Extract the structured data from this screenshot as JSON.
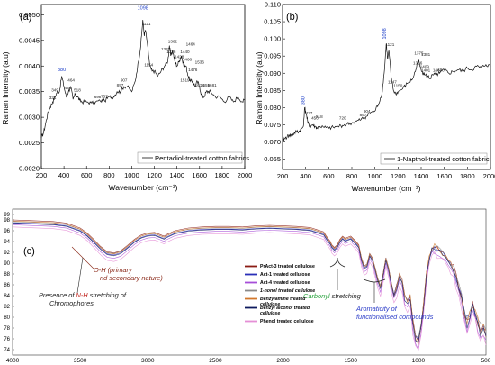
{
  "chart_data": [
    {
      "type": "line",
      "panel": "(a)",
      "legend": "Pentadiol-treated cotton fabrics",
      "legend_placement": "bottom-right",
      "xlabel": "Wavenumber (cm⁻¹)",
      "ylabel": "Raman Intensity (a.u)",
      "xlim": [
        200,
        2000
      ],
      "ylim": [
        0.002,
        0.0052
      ],
      "xticks": [
        "200",
        "400",
        "600",
        "800",
        "1000",
        "1200",
        "1400",
        "1600",
        "1800",
        "2000"
      ],
      "yticks": [
        "0.0020",
        "0.0025",
        "0.0030",
        "0.0035",
        "0.0040",
        "0.0045",
        "0.0050"
      ],
      "color": "#111111",
      "x": [
        200,
        220,
        240,
        260,
        280,
        300,
        320,
        340,
        360,
        380,
        400,
        420,
        440,
        460,
        480,
        500,
        520,
        540,
        560,
        600,
        640,
        680,
        720,
        760,
        800,
        840,
        870,
        900,
        930,
        960,
        1000,
        1030,
        1060,
        1080,
        1098,
        1110,
        1121,
        1140,
        1160,
        1180,
        1200,
        1230,
        1260,
        1290,
        1320,
        1333,
        1345,
        1362,
        1380,
        1400,
        1420,
        1439,
        1460,
        1480,
        1500,
        1520,
        1540,
        1560,
        1580,
        1600,
        1620,
        1640,
        1660,
        1680,
        1700,
        1740,
        1780,
        1820,
        1860,
        1900,
        1940,
        1980,
        2000
      ],
      "y": [
        0.0026,
        0.0027,
        0.0029,
        0.0031,
        0.0032,
        0.0033,
        0.0034,
        0.0035,
        0.0035,
        0.0038,
        0.0036,
        0.0034,
        0.0035,
        0.0036,
        0.00335,
        0.00345,
        0.0034,
        0.00333,
        0.0033,
        0.0033,
        0.00328,
        0.0033,
        0.00332,
        0.00332,
        0.0034,
        0.0034,
        0.0035,
        0.0035,
        0.0036,
        0.0036,
        0.0035,
        0.0037,
        0.0041,
        0.0044,
        0.0049,
        0.0046,
        0.0047,
        0.0044,
        0.004,
        0.0039,
        0.0039,
        0.0038,
        0.0039,
        0.004,
        0.0041,
        0.0044,
        0.0042,
        0.0043,
        0.0041,
        0.004,
        0.0041,
        0.0042,
        0.004,
        0.004,
        0.0038,
        0.0037,
        0.0037,
        0.0036,
        0.0037,
        0.0036,
        0.0034,
        0.0034,
        0.0035,
        0.0035,
        0.0035,
        0.0034,
        0.0034,
        0.0033,
        0.0034,
        0.0033,
        0.0034,
        0.0033,
        0.00335
      ],
      "annotations": [
        {
          "label": "334",
          "x": 300,
          "y": 0.00335
        },
        {
          "label": "349",
          "x": 320,
          "y": 0.0035
        },
        {
          "label": "380",
          "x": 380,
          "y": 0.0039,
          "highlight": true
        },
        {
          "label": "434",
          "x": 434,
          "y": 0.00355
        },
        {
          "label": "464",
          "x": 464,
          "y": 0.0037
        },
        {
          "label": "518",
          "x": 518,
          "y": 0.0035
        },
        {
          "label": "698",
          "x": 698,
          "y": 0.00337
        },
        {
          "label": "757",
          "x": 757,
          "y": 0.00338
        },
        {
          "label": "897",
          "x": 897,
          "y": 0.0036
        },
        {
          "label": "907",
          "x": 930,
          "y": 0.0037
        },
        {
          "label": "1098",
          "x": 1098,
          "y": 0.0051,
          "highlight": true
        },
        {
          "label": "1121",
          "x": 1128,
          "y": 0.0048
        },
        {
          "label": "1154",
          "x": 1150,
          "y": 0.004
        },
        {
          "label": "1332",
          "x": 1300,
          "y": 0.0043
        },
        {
          "label": "1336",
          "x": 1350,
          "y": 0.00425
        },
        {
          "label": "1362",
          "x": 1362,
          "y": 0.00445
        },
        {
          "label": "1428",
          "x": 1420,
          "y": 0.00415
        },
        {
          "label": "1440",
          "x": 1470,
          "y": 0.00425
        },
        {
          "label": "1464",
          "x": 1520,
          "y": 0.0044
        },
        {
          "label": "1466",
          "x": 1490,
          "y": 0.0041
        },
        {
          "label": "1519",
          "x": 1470,
          "y": 0.0037
        },
        {
          "label": "1476",
          "x": 1540,
          "y": 0.0039
        },
        {
          "label": "1536",
          "x": 1600,
          "y": 0.00405
        },
        {
          "label": "1614",
          "x": 1600,
          "y": 0.0036
        },
        {
          "label": "1659",
          "x": 1650,
          "y": 0.0036
        },
        {
          "label": "1681",
          "x": 1710,
          "y": 0.0036
        }
      ]
    },
    {
      "type": "line",
      "panel": "(b)",
      "legend": "1-Napthol-treated cotton fabric",
      "legend_placement": "bottom-right",
      "xlabel": "Wavenumber (cm⁻¹)",
      "ylabel": "Raman Intensity (a.u)",
      "xlim": [
        200,
        2000
      ],
      "ylim": [
        0.062,
        0.11
      ],
      "xticks": [
        "200",
        "400",
        "600",
        "800",
        "1000",
        "1200",
        "1400",
        "1600",
        "1800",
        "2000"
      ],
      "yticks": [
        "0.065",
        "0.070",
        "0.075",
        "0.080",
        "0.085",
        "0.090",
        "0.095",
        "0.100",
        "0.105",
        "0.110"
      ],
      "color": "#111111",
      "x": [
        200,
        220,
        240,
        260,
        280,
        300,
        320,
        340,
        360,
        380,
        392,
        405,
        420,
        440,
        460,
        480,
        500,
        520,
        560,
        600,
        640,
        680,
        720,
        760,
        800,
        840,
        880,
        900,
        930,
        960,
        1000,
        1030,
        1060,
        1080,
        1098,
        1110,
        1121,
        1140,
        1160,
        1180,
        1200,
        1240,
        1280,
        1320,
        1350,
        1375,
        1390,
        1410,
        1430,
        1460,
        1480,
        1500,
        1530,
        1560,
        1600,
        1640,
        1680,
        1720,
        1760,
        1800,
        1840,
        1880,
        1920,
        1960,
        2000
      ],
      "y": [
        0.0705,
        0.071,
        0.0715,
        0.072,
        0.072,
        0.0725,
        0.073,
        0.073,
        0.0735,
        0.0745,
        0.08,
        0.078,
        0.0755,
        0.0745,
        0.075,
        0.0745,
        0.074,
        0.0745,
        0.0742,
        0.074,
        0.0742,
        0.0745,
        0.0748,
        0.0752,
        0.0755,
        0.076,
        0.0765,
        0.077,
        0.0775,
        0.0785,
        0.079,
        0.081,
        0.084,
        0.09,
        0.0985,
        0.094,
        0.0965,
        0.089,
        0.085,
        0.084,
        0.0845,
        0.0855,
        0.087,
        0.088,
        0.0905,
        0.094,
        0.092,
        0.0905,
        0.0895,
        0.089,
        0.0885,
        0.0895,
        0.0895,
        0.09,
        0.091,
        0.09,
        0.0905,
        0.091,
        0.0905,
        0.0915,
        0.091,
        0.092,
        0.0915,
        0.0925,
        0.092
      ],
      "annotations": [
        {
          "label": "380",
          "x": 392,
          "y": 0.082,
          "highlight": true,
          "rotated": true
        },
        {
          "label": "437",
          "x": 430,
          "y": 0.078
        },
        {
          "label": "450",
          "x": 480,
          "y": 0.0765
        },
        {
          "label": "518",
          "x": 518,
          "y": 0.077
        },
        {
          "label": "720",
          "x": 720,
          "y": 0.0765
        },
        {
          "label": "897",
          "x": 897,
          "y": 0.0775
        },
        {
          "label": "904",
          "x": 930,
          "y": 0.0785
        },
        {
          "label": "1098",
          "x": 1098,
          "y": 0.1015,
          "highlight": true,
          "rotated": true
        },
        {
          "label": "1121",
          "x": 1130,
          "y": 0.098
        },
        {
          "label": "1147",
          "x": 1150,
          "y": 0.087
        },
        {
          "label": "1150",
          "x": 1200,
          "y": 0.086
        },
        {
          "label": "1375",
          "x": 1380,
          "y": 0.0955
        },
        {
          "label": "1381",
          "x": 1440,
          "y": 0.095
        },
        {
          "label": "1336",
          "x": 1370,
          "y": 0.0925
        },
        {
          "label": "1409",
          "x": 1430,
          "y": 0.0915
        },
        {
          "label": "1401",
          "x": 1440,
          "y": 0.0905
        },
        {
          "label": "1468",
          "x": 1540,
          "y": 0.0905
        },
        {
          "label": "1470",
          "x": 1560,
          "y": 0.0905
        }
      ]
    },
    {
      "type": "line",
      "panel": "(c)",
      "xlim": [
        4000,
        500
      ],
      "ylim": [
        74,
        99
      ],
      "xticks": [
        "4000",
        "3500",
        "3000",
        "2500",
        "2000",
        "1500",
        "1000",
        "500"
      ],
      "yticks": [
        "74",
        "76",
        "78",
        "80",
        "82",
        "84",
        "86",
        "88",
        "90",
        "92",
        "94",
        "96",
        "98",
        "99"
      ],
      "legend_placement": "center-right",
      "series": [
        {
          "name": "PrAct-3 treated cellulose",
          "italic": false,
          "color": "#8b1c14",
          "offset": 0.0,
          "scale": 1.0
        },
        {
          "name": "Act-1 treated cellulose",
          "italic": false,
          "color": "#2a2fb8",
          "offset": -0.5,
          "scale": 0.98
        },
        {
          "name": "Act-4 treated cellulose",
          "italic": false,
          "color": "#a64fd8",
          "offset": -0.9,
          "scale": 1.02
        },
        {
          "name": "1-nonol treated cellulose",
          "italic": true,
          "color": "#8a8a8a",
          "offset": -0.3,
          "scale": 0.97
        },
        {
          "name": "Benzylamine treated cellulose",
          "italic": true,
          "color": "#d2782c",
          "offset": -0.2,
          "scale": 1.0
        },
        {
          "name": "Benzyl alcohol treated cellulose",
          "italic": true,
          "color": "#0e1a5e",
          "offset": -0.6,
          "scale": 0.99
        },
        {
          "name": "Phenol treated cellulose",
          "italic": false,
          "color": "#e58fd6",
          "offset": -1.3,
          "scale": 1.05
        }
      ],
      "base": {
        "x": [
          4000,
          3900,
          3800,
          3700,
          3600,
          3500,
          3450,
          3400,
          3350,
          3300,
          3250,
          3200,
          3150,
          3100,
          3050,
          3000,
          2950,
          2900,
          2880,
          2860,
          2800,
          2700,
          2600,
          2500,
          2400,
          2300,
          2200,
          2100,
          2000,
          1900,
          1800,
          1750,
          1700,
          1680,
          1650,
          1640,
          1620,
          1600,
          1580,
          1560,
          1540,
          1500,
          1460,
          1440,
          1420,
          1400,
          1380,
          1360,
          1340,
          1320,
          1300,
          1280,
          1260,
          1240,
          1220,
          1200,
          1180,
          1160,
          1140,
          1120,
          1100,
          1080,
          1060,
          1040,
          1020,
          1000,
          980,
          960,
          940,
          920,
          900,
          880,
          860,
          840,
          820,
          800,
          780,
          760,
          740,
          720,
          700,
          680,
          660,
          640,
          620,
          600,
          580,
          560,
          540,
          520,
          500
        ],
        "y": [
          98.0,
          97.9,
          97.8,
          97.7,
          97.4,
          96.5,
          95.6,
          94.4,
          93.1,
          92.1,
          91.9,
          92.3,
          93.3,
          94.4,
          95.2,
          95.6,
          95.7,
          95.2,
          95.0,
          95.3,
          96.0,
          96.5,
          96.7,
          96.8,
          96.8,
          96.7,
          96.9,
          97.0,
          96.9,
          96.8,
          96.6,
          96.2,
          95.8,
          95.0,
          94.0,
          93.4,
          92.9,
          93.4,
          94.4,
          95.0,
          94.6,
          95.0,
          94.0,
          93.4,
          91.0,
          89.5,
          89.8,
          91.8,
          91.0,
          89.2,
          87.2,
          85.8,
          88.2,
          91.0,
          89.2,
          86.5,
          84.2,
          86.0,
          88.0,
          86.8,
          84.0,
          83.2,
          84.2,
          79.2,
          76.5,
          75.6,
          78.5,
          82.8,
          88.2,
          91.2,
          92.8,
          93.2,
          92.9,
          92.5,
          92.0,
          91.6,
          91.0,
          90.2,
          89.2,
          87.5,
          85.8,
          83.2,
          80.8,
          79.2,
          80.5,
          82.5,
          81.0,
          79.2,
          77.5,
          78.8,
          77.5
        ]
      },
      "annotations": [
        {
          "text": "O-H (primary and secondary nature)",
          "color": "#8b2a1a",
          "italic": true
        },
        {
          "text_parts": [
            "Presence of ",
            "N-H",
            " stretching of Chromophores"
          ],
          "color": "#222222",
          "highlight": "#c0201a"
        },
        {
          "text_parts": [
            "Carbonyl",
            " stretching"
          ],
          "color": "#222222",
          "highlight": "#27a23c"
        },
        {
          "text": "Aromaticity of functionalised compounds",
          "color": "#2b3cc8",
          "italic": true
        }
      ]
    }
  ]
}
